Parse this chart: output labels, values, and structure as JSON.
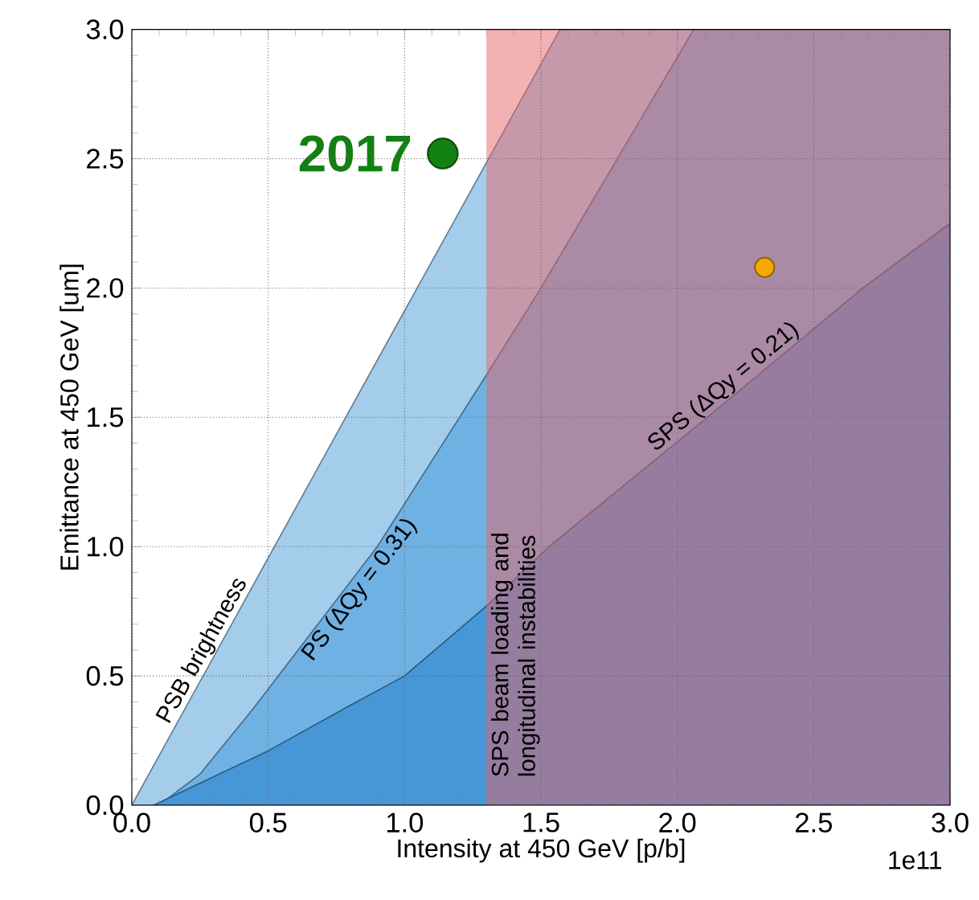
{
  "chart_data": {
    "type": "area",
    "xlabel": "Intensity at 450 GeV [p/b]",
    "ylabel": "Emittance at 450 GeV [um]",
    "xlim": [
      0,
      3.0
    ],
    "ylim": [
      0,
      3.0
    ],
    "xticks": [
      {
        "value": 0,
        "label": "0.0"
      },
      {
        "value": 0.5,
        "label": "0.5"
      },
      {
        "value": 1,
        "label": "1.0"
      },
      {
        "value": 1.5,
        "label": "1.5"
      },
      {
        "value": 2,
        "label": "2.0"
      },
      {
        "value": 2.5,
        "label": "2.5"
      },
      {
        "value": 3,
        "label": "3.0"
      }
    ],
    "yticks": [
      {
        "value": 0,
        "label": "0.0"
      },
      {
        "value": 0.5,
        "label": "0.5"
      },
      {
        "value": 1,
        "label": "1.0"
      },
      {
        "value": 1.5,
        "label": "1.5"
      },
      {
        "value": 2,
        "label": "2.0"
      },
      {
        "value": 2.5,
        "label": "2.5"
      },
      {
        "value": 3,
        "label": "3.0"
      }
    ],
    "grid": true,
    "series": [
      {
        "name": "PSB brightness",
        "color": "#a4cdec",
        "x": [
          0,
          0.8,
          1.57,
          3.0
        ],
        "values": [
          0,
          1.53,
          3.0,
          3.0
        ]
      },
      {
        "name": "PS (ΔQy = 0.31)",
        "color": "#6fb1e2",
        "x": [
          0.1,
          0.25,
          0.45,
          0.9,
          1.28,
          1.5,
          2.06,
          3.0
        ],
        "values": [
          0,
          0.12,
          0.38,
          1.0,
          1.63,
          2.0,
          3.0,
          3.0
        ]
      },
      {
        "name": "SPS (ΔQy = 0.21)",
        "color": "#4796d6",
        "x": [
          0.08,
          0.2,
          0.5,
          0.79,
          1.0,
          1.3,
          1.53,
          2.11,
          2.68,
          3.0
        ],
        "values": [
          0,
          0.06,
          0.21,
          0.38,
          0.5,
          0.77,
          1.0,
          1.5,
          2.0,
          2.25
        ]
      },
      {
        "type": "scatter",
        "color": "#138013",
        "x": [
          1.14
        ],
        "values": [
          2.52
        ],
        "marker": "circle"
      },
      {
        "type": "scatter",
        "color": "#f5a800",
        "x": [
          2.32
        ],
        "values": [
          2.08
        ],
        "marker": "circle"
      }
    ],
    "bands": [
      {
        "axis": "x",
        "from": 1.3,
        "to": 3.0,
        "label": "SPS beam loading and longitudinal instabilities",
        "color": "#e56367"
      }
    ],
    "annotations": [
      {
        "text": "2017",
        "x": 1.14,
        "y": 2.52
      },
      "1e11"
    ]
  }
}
